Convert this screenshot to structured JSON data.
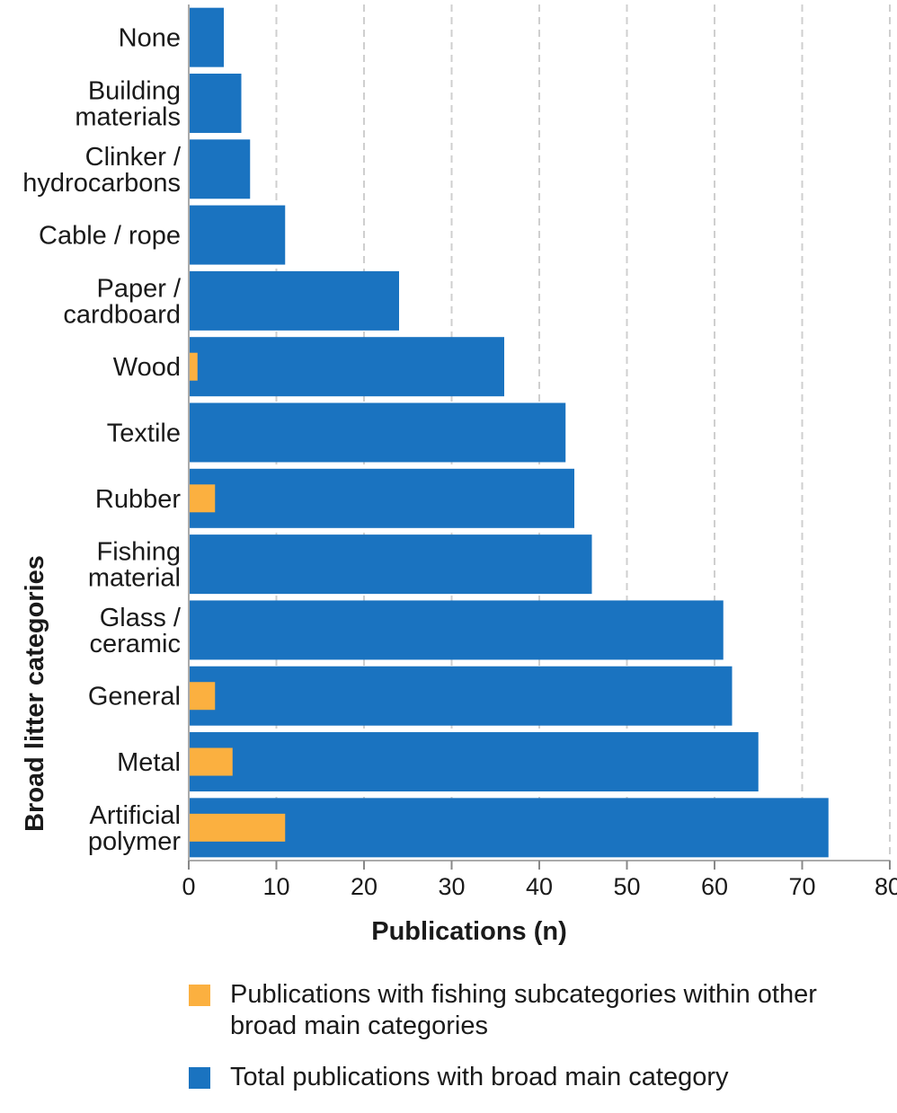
{
  "chart_data": {
    "type": "bar",
    "orientation": "horizontal",
    "categories": [
      [
        "None"
      ],
      [
        "Building",
        "materials"
      ],
      [
        "Clinker /",
        "hydrocarbons"
      ],
      [
        "Cable / rope"
      ],
      [
        "Paper /",
        "cardboard"
      ],
      [
        "Wood"
      ],
      [
        "Textile"
      ],
      [
        "Rubber"
      ],
      [
        "Fishing",
        "material"
      ],
      [
        "Glass /",
        "ceramic"
      ],
      [
        "General"
      ],
      [
        "Metal"
      ],
      [
        "Artificial",
        "polymer"
      ]
    ],
    "series": [
      {
        "name": "Total publications with broad main category",
        "color": "#1a73c0",
        "values": [
          4,
          6,
          7,
          11,
          24,
          36,
          43,
          44,
          46,
          61,
          62,
          65,
          73
        ]
      },
      {
        "name": "Publications with fishing subcategories within other broad main categories",
        "color": "#fbb040",
        "values": [
          0,
          0,
          0,
          0,
          0,
          1,
          0,
          3,
          0,
          0,
          3,
          5,
          11
        ]
      }
    ],
    "xlabel": "Publications (n)",
    "ylabel": "Broad litter categories",
    "xlim": [
      0,
      80
    ],
    "xticks": [
      0,
      10,
      20,
      30,
      40,
      50,
      60,
      70,
      80
    ],
    "grid": "vertical dashed"
  },
  "legend": {
    "items": [
      {
        "text": "Publications with fishing subcategories within other broad main categories",
        "color": "#fbb040"
      },
      {
        "text": "Total publications with broad main category",
        "color": "#1a73c0"
      }
    ]
  }
}
